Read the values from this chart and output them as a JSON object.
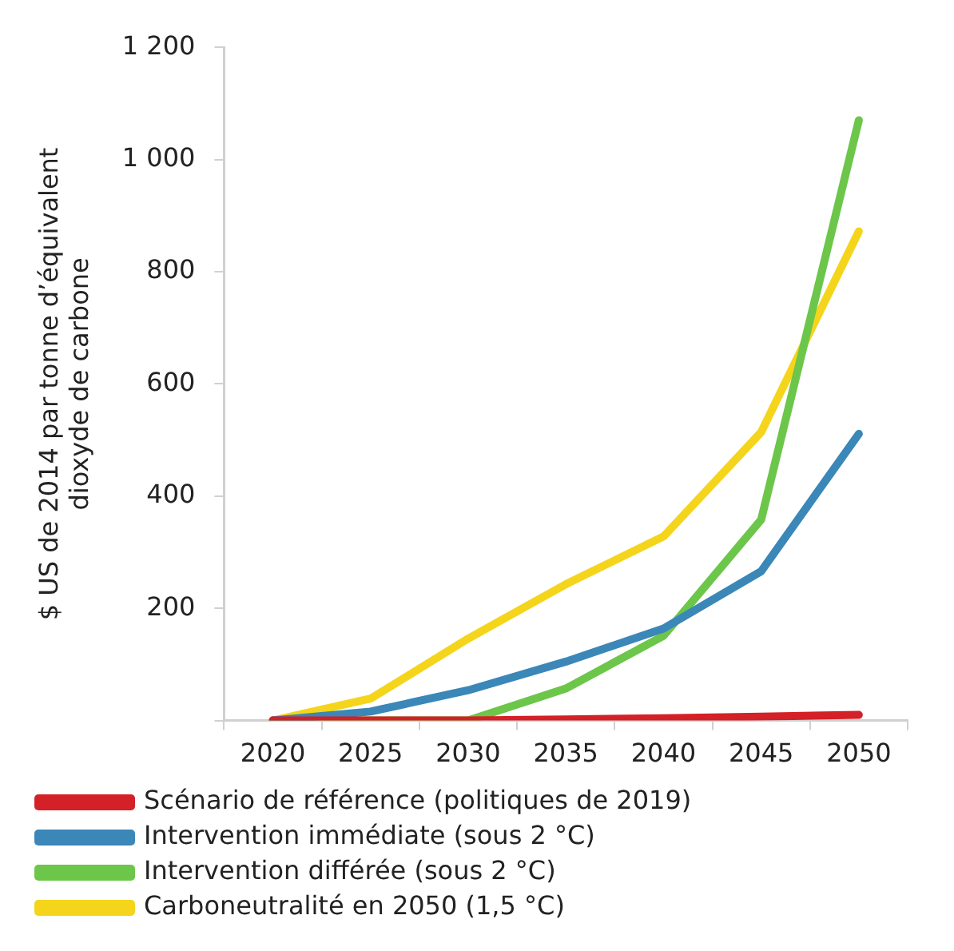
{
  "chart_data": {
    "type": "line",
    "ylabel": "$ US de 2014 par tonne d’équivalent\ndioxyde de carbone",
    "categories": [
      "2020",
      "2025",
      "2030",
      "2035",
      "2040",
      "2045",
      "2050"
    ],
    "series": [
      {
        "name": "Scénario de référence (politiques de 2019)",
        "color": "#d42027",
        "values": [
          0,
          0,
          0,
          2,
          4,
          7,
          10
        ]
      },
      {
        "name": "Intervention immédiate (sous 2 °C)",
        "color": "#3a87b8",
        "values": [
          0,
          16,
          54,
          105,
          164,
          266,
          511
        ]
      },
      {
        "name": "Intervention différée (sous 2 °C)",
        "color": "#6cc64a",
        "values": [
          0,
          0,
          0,
          57,
          151,
          358,
          1070
        ]
      },
      {
        "name": "Carboneutralité en 2050 (1,5 °C)",
        "color": "#f4d51c",
        "values": [
          0,
          39,
          146,
          243,
          328,
          514,
          872
        ]
      }
    ],
    "ylim": [
      0,
      1200
    ],
    "yticks": [
      {
        "value": 0,
        "label": null
      },
      200,
      400,
      600,
      800,
      {
        "value": 1000,
        "label": "1 000"
      },
      {
        "value": 1200,
        "label": "1 200"
      }
    ],
    "grid": false,
    "legend": "bottom",
    "marker": "none",
    "line_style": "solid"
  }
}
